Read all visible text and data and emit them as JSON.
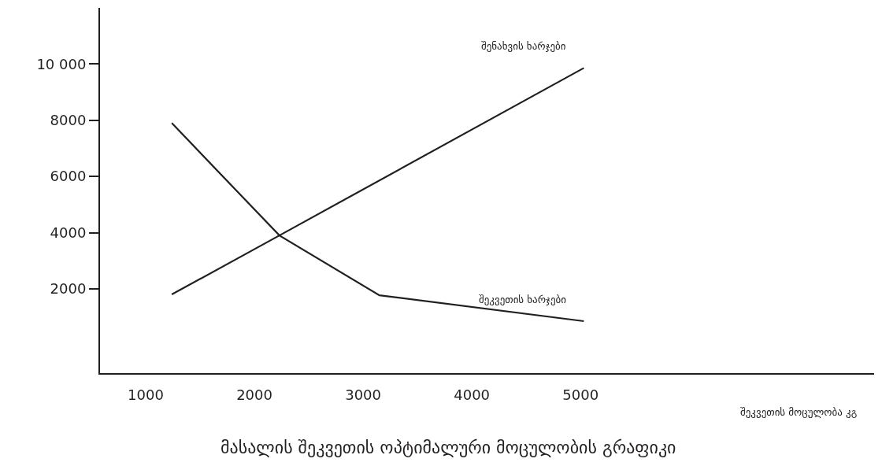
{
  "chart_data": {
    "type": "line",
    "title": "მასალის შეკვეთის ოპტიმალური მოცულობის გრაფიკი",
    "xlabel": "შეკვეთის მოცულობა კგ",
    "series": [
      {
        "name": "შენახვის ხარჯები",
        "color": "#231f20",
        "x": [
          1240,
          2230,
          5030
        ],
        "values": [
          1800,
          3900,
          9860
        ]
      },
      {
        "name": "შეკვეთის ხარჯები",
        "color": "#231f20",
        "x": [
          1240,
          2230,
          3150,
          5030
        ],
        "values": [
          7900,
          3900,
          1770,
          850
        ]
      }
    ],
    "xlim": [
      580,
      7700
    ],
    "ylim": [
      -1000,
      12000
    ],
    "xticks": [
      1000,
      2000,
      3000,
      4000,
      5000
    ],
    "yticks": [
      2000,
      4000,
      6000,
      {
        "value": 8000,
        "label": "8000"
      },
      {
        "value": 10000,
        "label": "10 000"
      }
    ],
    "legend": false,
    "marker": "none",
    "line_style": "solid"
  }
}
